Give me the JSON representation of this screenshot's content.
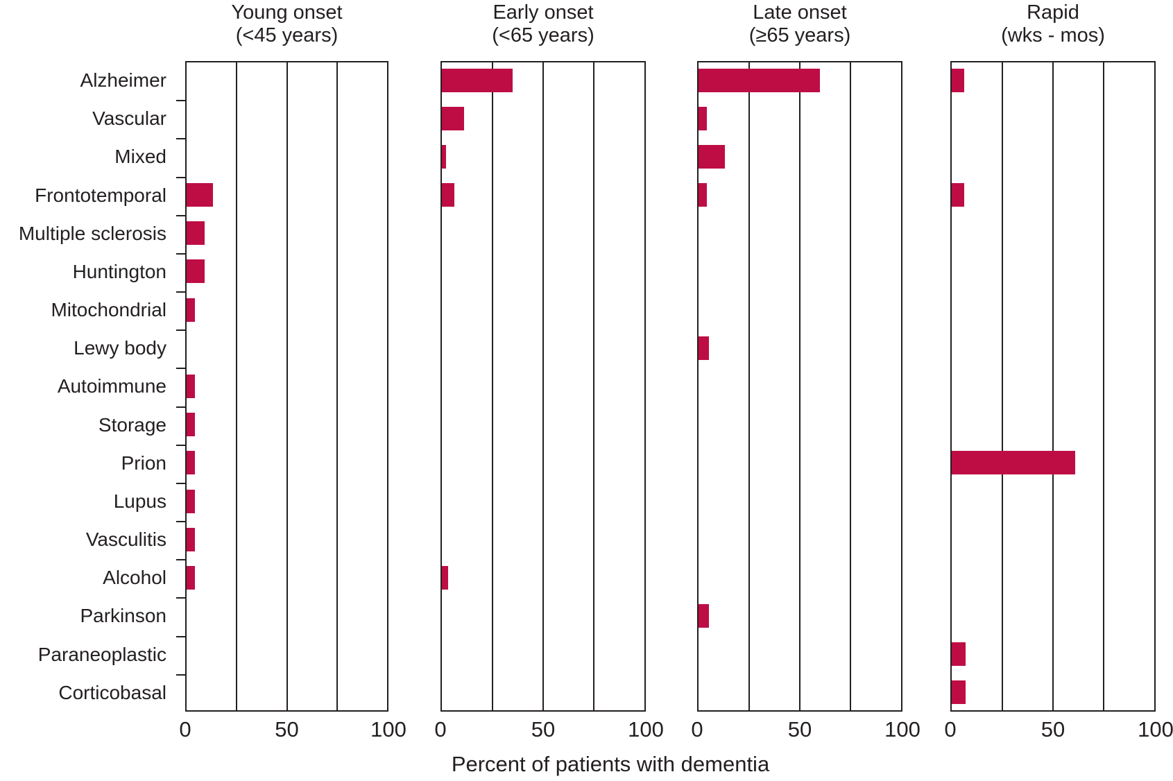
{
  "chart_data": {
    "type": "bar",
    "orientation": "horizontal",
    "xlabel": "Percent of patients with dementia",
    "xlim": [
      0,
      100
    ],
    "xticks": [
      0,
      50,
      100
    ],
    "gridlines_x": [
      25,
      50,
      75
    ],
    "grid": true,
    "legend": false,
    "bar_color": "#BE0D45",
    "axis_color": "#231F20",
    "categories": [
      "Alzheimer",
      "Vascular",
      "Mixed",
      "Frontotemporal",
      "Multiple sclerosis",
      "Huntington",
      "Mitochondrial",
      "Lewy body",
      "Autoimmune",
      "Storage",
      "Prion",
      "Lupus",
      "Vasculitis",
      "Alcohol",
      "Parkinson",
      "Paraneoplastic",
      "Corticobasal"
    ],
    "panels": [
      {
        "title_line1": "Young onset",
        "title_line2": "(<45 years)",
        "values": [
          0,
          0,
          0,
          13,
          9,
          9,
          4,
          0,
          4,
          4,
          4,
          4,
          4,
          4,
          0,
          0,
          0
        ]
      },
      {
        "title_line1": "Early onset",
        "title_line2": "(<65 years)",
        "values": [
          35,
          11,
          2,
          6,
          0,
          0,
          0,
          0,
          0,
          0,
          0,
          0,
          0,
          3,
          0,
          0,
          0
        ]
      },
      {
        "title_line1": "Late onset",
        "title_line2": "(≥65 years)",
        "values": [
          60,
          4,
          13,
          4,
          0,
          0,
          0,
          5,
          0,
          0,
          0,
          0,
          0,
          0,
          5,
          0,
          0
        ]
      },
      {
        "title_line1": "Rapid",
        "title_line2": "(wks - mos)",
        "values": [
          6,
          0,
          0,
          6,
          0,
          0,
          0,
          0,
          0,
          0,
          61,
          0,
          0,
          0,
          0,
          7,
          7
        ]
      }
    ]
  }
}
